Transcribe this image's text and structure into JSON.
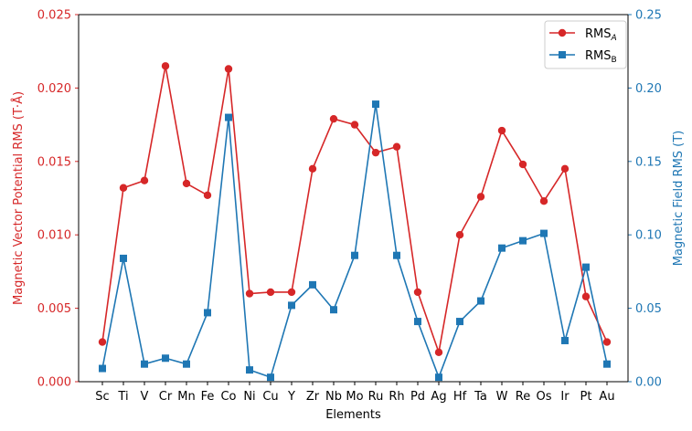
{
  "chart_data": {
    "type": "line",
    "xlabel": "Elements",
    "ylabel_left": "Magnetic Vector Potential RMS (T·Å)",
    "ylabel_right": "Magnetic Field RMS (T)",
    "ylim_left": [
      0,
      0.025
    ],
    "ylim_right": [
      0,
      0.25
    ],
    "yticks_left": [
      "0.000",
      "0.005",
      "0.010",
      "0.015",
      "0.020",
      "0.025"
    ],
    "yticks_right": [
      "0.00",
      "0.05",
      "0.10",
      "0.15",
      "0.20",
      "0.25"
    ],
    "grid": false,
    "legend_position": "top-right",
    "categories": [
      "Sc",
      "Ti",
      "V",
      "Cr",
      "Mn",
      "Fe",
      "Co",
      "Ni",
      "Cu",
      "Y",
      "Zr",
      "Nb",
      "Mo",
      "Ru",
      "Rh",
      "Pd",
      "Ag",
      "Hf",
      "Ta",
      "W",
      "Re",
      "Os",
      "Ir",
      "Pt",
      "Au"
    ],
    "series": [
      {
        "name": "RMS_A",
        "label_main": "RMS",
        "label_sub": "A",
        "axis": "left",
        "color": "#d62728",
        "marker": "circle",
        "values": [
          0.0027,
          0.0132,
          0.0137,
          0.0215,
          0.0135,
          0.0127,
          0.0213,
          0.006,
          0.0061,
          0.0061,
          0.0145,
          0.0179,
          0.0175,
          0.0156,
          0.016,
          0.0061,
          0.002,
          0.01,
          0.0126,
          0.0171,
          0.0148,
          0.0123,
          0.0145,
          0.0058,
          0.0027
        ]
      },
      {
        "name": "RMS_B",
        "label_main": "RMS",
        "label_sub": "B",
        "axis": "right",
        "color": "#1f77b4",
        "marker": "square",
        "values": [
          0.009,
          0.084,
          0.012,
          0.016,
          0.012,
          0.047,
          0.18,
          0.008,
          0.003,
          0.052,
          0.066,
          0.049,
          0.086,
          0.189,
          0.086,
          0.041,
          0.003,
          0.041,
          0.055,
          0.091,
          0.096,
          0.101,
          0.028,
          0.078,
          0.012
        ]
      }
    ]
  }
}
